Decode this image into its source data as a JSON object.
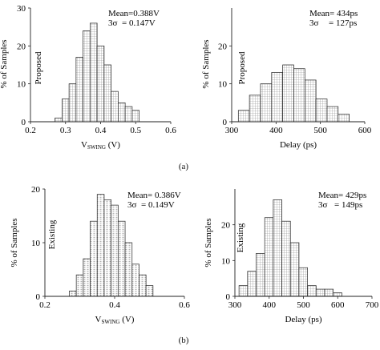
{
  "captions": [
    "(a)",
    "(b)"
  ],
  "chart_data": [
    {
      "type": "bar",
      "panel": "a-left",
      "xlabel": "V",
      "xlabel_sub": "SWING",
      "xlabel_unit": " (V)",
      "ylabel": "% of Samples",
      "inner_label": "Proposed",
      "stats": [
        "Mean=0.388V",
        "3σ",
        "= 0.147V"
      ],
      "xlim": [
        0.2,
        0.6
      ],
      "ylim": [
        0,
        30
      ],
      "xticks": [
        0.2,
        0.3,
        0.4,
        0.5,
        0.6
      ],
      "yticks": [
        0,
        10,
        20,
        30
      ],
      "bin_width": 0.02,
      "bin_starts": [
        0.27,
        0.29,
        0.31,
        0.33,
        0.35,
        0.37,
        0.39,
        0.41,
        0.43,
        0.45,
        0.47,
        0.49
      ],
      "values": [
        1,
        6,
        10,
        17,
        24,
        26,
        20,
        15,
        8,
        5,
        4,
        3
      ]
    },
    {
      "type": "bar",
      "panel": "a-right",
      "xlabel": "Delay (ps)",
      "ylabel": "% of Samples",
      "inner_label": "Proposed",
      "stats": [
        "Mean= 434ps",
        "3σ",
        "= 127ps"
      ],
      "xlim": [
        300,
        600
      ],
      "ylim": [
        0,
        30
      ],
      "xticks": [
        300,
        400,
        500,
        600
      ],
      "yticks": [
        0,
        10,
        20
      ],
      "bin_width": 25,
      "bin_starts": [
        315,
        340,
        365,
        390,
        415,
        440,
        465,
        490,
        515,
        540
      ],
      "values": [
        3,
        7,
        10,
        13,
        15,
        14,
        11,
        6,
        4,
        2
      ]
    },
    {
      "type": "bar",
      "panel": "b-left",
      "xlabel": "V",
      "xlabel_sub": "SWING",
      "xlabel_unit": " (V)",
      "ylabel": "% of Samples",
      "inner_label": "Existing",
      "stats": [
        "Mean= 0.386V",
        "3σ",
        "= 0.149V"
      ],
      "xlim": [
        0.2,
        0.6
      ],
      "ylim": [
        0,
        20
      ],
      "xticks": [
        0.2,
        0.4,
        0.6
      ],
      "yticks": [
        0,
        10,
        20
      ],
      "bin_width": 0.02,
      "bin_starts": [
        0.27,
        0.29,
        0.31,
        0.33,
        0.35,
        0.37,
        0.39,
        0.41,
        0.43,
        0.45,
        0.47,
        0.49
      ],
      "values": [
        1,
        4,
        7,
        14,
        19,
        18,
        17,
        14,
        10,
        6,
        4,
        2
      ]
    },
    {
      "type": "bar",
      "panel": "b-right",
      "xlabel": "Delay (ps)",
      "ylabel": "% of Samples",
      "inner_label": "Existing",
      "stats": [
        "Mean= 429ps",
        "3σ",
        "= 149ps"
      ],
      "xlim": [
        300,
        700
      ],
      "ylim": [
        0,
        30
      ],
      "xticks": [
        300,
        400,
        500,
        600,
        700
      ],
      "yticks": [
        0,
        10,
        20
      ],
      "bin_width": 25,
      "bin_starts": [
        312,
        337,
        362,
        387,
        412,
        437,
        462,
        487,
        512,
        537,
        562,
        587
      ],
      "values": [
        3,
        7,
        12,
        22,
        27,
        21,
        15,
        8,
        3,
        2,
        2,
        1
      ]
    }
  ]
}
